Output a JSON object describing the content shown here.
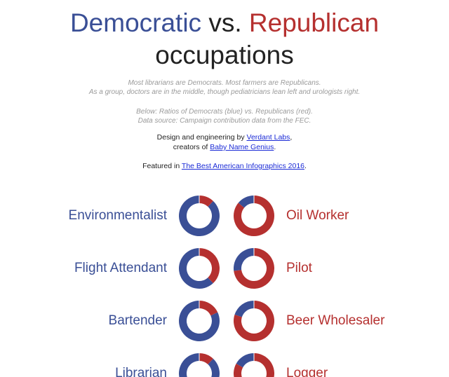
{
  "header": {
    "title_dem": "Democratic",
    "title_vs": " vs. ",
    "title_rep": "Republican",
    "title_line2": "occupations"
  },
  "subtitle": {
    "line1": "Most librarians are Democrats. Most farmers are Republicans.",
    "line2": "As a group, doctors are in the middle, though pediatricians lean left and urologists right.",
    "line3": "Below: Ratios of Democrats (blue) vs. Republicans (red).",
    "line4": "Data source: Campaign contribution data from the FEC."
  },
  "credits": {
    "design_prefix": "Design and engineering by ",
    "design_link": "Verdant Labs",
    "design_suffix": ",",
    "creators_prefix": "creators of ",
    "creators_link": "Baby Name Genius",
    "creators_suffix": ".",
    "featured_prefix": "Featured in ",
    "featured_link": "The Best American Infographics 2016",
    "featured_suffix": "."
  },
  "colors": {
    "democrat": "#3a4f96",
    "republican": "#b5302f"
  },
  "occupations": {
    "left": [
      {
        "label": "Environmentalist",
        "dem_share": 0.88
      },
      {
        "label": "Flight Attendant",
        "dem_share": 0.62
      },
      {
        "label": "Bartender",
        "dem_share": 0.82
      },
      {
        "label": "Librarian",
        "dem_share": 0.88
      }
    ],
    "right": [
      {
        "label": "Oil Worker",
        "dem_share": 0.14
      },
      {
        "label": "Pilot",
        "dem_share": 0.27
      },
      {
        "label": "Beer Wholesaler",
        "dem_share": 0.2
      },
      {
        "label": "Logger",
        "dem_share": 0.17
      }
    ]
  }
}
